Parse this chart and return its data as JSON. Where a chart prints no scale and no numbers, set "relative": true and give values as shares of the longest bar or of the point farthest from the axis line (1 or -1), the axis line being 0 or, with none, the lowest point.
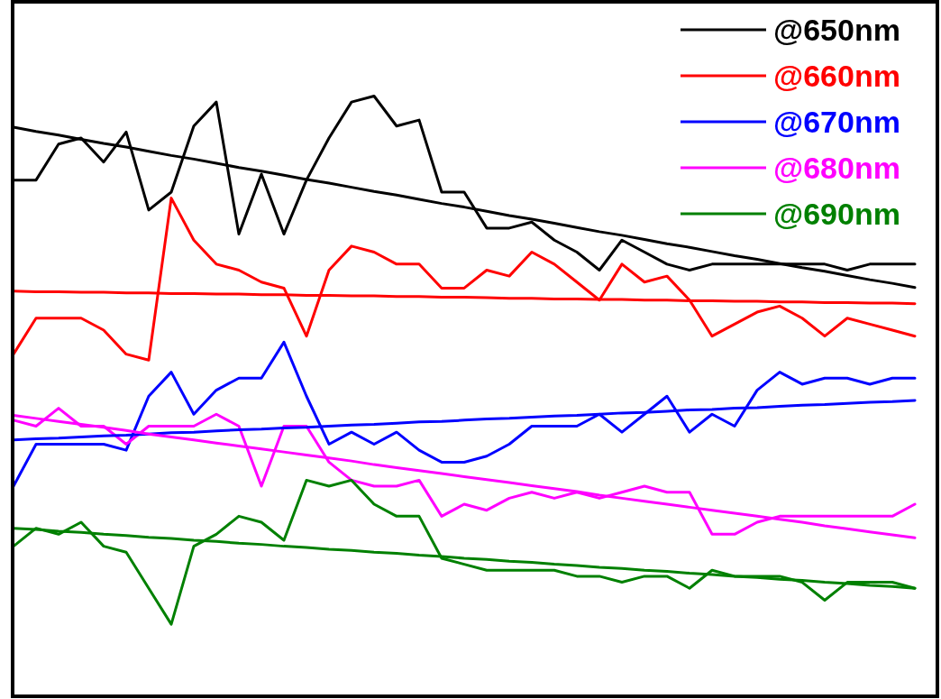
{
  "chart_data": {
    "type": "line",
    "relative": true,
    "legend": "top right",
    "categories": [
      null,
      null,
      null,
      null,
      null,
      null,
      null,
      null,
      null,
      null,
      null,
      null,
      null,
      null,
      null,
      null,
      null,
      null,
      null,
      null,
      null,
      null,
      null,
      null,
      null,
      null,
      null,
      null,
      null,
      null,
      null,
      null,
      null,
      null,
      null,
      null,
      null,
      null,
      null,
      null,
      null
    ],
    "series": [
      {
        "name": "@650nm",
        "color": "#000000",
        "values": [
          0.86,
          0.86,
          0.92,
          0.93,
          0.89,
          0.94,
          0.81,
          0.84,
          0.95,
          0.99,
          0.77,
          0.87,
          0.77,
          0.86,
          0.93,
          0.99,
          1.0,
          0.95,
          0.96,
          0.84,
          0.84,
          0.78,
          0.78,
          0.79,
          0.76,
          0.74,
          0.71,
          0.76,
          0.74,
          0.72,
          0.71,
          0.72,
          0.72,
          0.72,
          0.72,
          0.72,
          0.72,
          0.71,
          0.72,
          0.72,
          0.72
        ]
      },
      {
        "name": "@660nm",
        "color": "#ff0000",
        "values": [
          0.57,
          0.63,
          0.63,
          0.63,
          0.61,
          0.57,
          0.56,
          0.83,
          0.76,
          0.72,
          0.71,
          0.69,
          0.68,
          0.6,
          0.71,
          0.75,
          0.74,
          0.72,
          0.72,
          0.68,
          0.68,
          0.71,
          0.7,
          0.74,
          0.72,
          0.69,
          0.66,
          0.72,
          0.69,
          0.7,
          0.66,
          0.6,
          0.62,
          0.64,
          0.65,
          0.63,
          0.6,
          0.63,
          0.62,
          0.61,
          0.6
        ]
      },
      {
        "name": "@670nm",
        "color": "#0000ff",
        "values": [
          0.35,
          0.42,
          0.42,
          0.42,
          0.42,
          0.41,
          0.5,
          0.54,
          0.47,
          0.51,
          0.53,
          0.53,
          0.59,
          0.5,
          0.42,
          0.44,
          0.42,
          0.44,
          0.41,
          0.39,
          0.39,
          0.4,
          0.42,
          0.45,
          0.45,
          0.45,
          0.47,
          0.44,
          0.47,
          0.5,
          0.44,
          0.47,
          0.45,
          0.51,
          0.54,
          0.52,
          0.53,
          0.53,
          0.52,
          0.53,
          0.53
        ]
      },
      {
        "name": "@680nm",
        "color": "#ff00ff",
        "values": [
          0.46,
          0.45,
          0.48,
          0.45,
          0.45,
          0.42,
          0.45,
          0.45,
          0.45,
          0.47,
          0.45,
          0.35,
          0.45,
          0.45,
          0.39,
          0.36,
          0.35,
          0.35,
          0.36,
          0.3,
          0.32,
          0.31,
          0.33,
          0.34,
          0.33,
          0.34,
          0.33,
          0.34,
          0.35,
          0.34,
          0.34,
          0.27,
          0.27,
          0.29,
          0.3,
          0.3,
          0.3,
          0.3,
          0.3,
          0.3,
          0.32
        ]
      },
      {
        "name": "@690nm",
        "color": "#008000",
        "values": [
          0.25,
          0.28,
          0.27,
          0.29,
          0.25,
          0.24,
          0.18,
          0.12,
          0.25,
          0.27,
          0.3,
          0.29,
          0.26,
          0.36,
          0.35,
          0.36,
          0.32,
          0.3,
          0.3,
          0.23,
          0.22,
          0.21,
          0.21,
          0.21,
          0.21,
          0.2,
          0.2,
          0.19,
          0.2,
          0.2,
          0.18,
          0.21,
          0.2,
          0.2,
          0.2,
          0.19,
          0.16,
          0.19,
          0.19,
          0.19,
          0.18
        ]
      },
      {
        "color": "#000000",
        "values": [
          0.948,
          0.941,
          0.935,
          0.928,
          0.921,
          0.915,
          0.908,
          0.901,
          0.895,
          0.888,
          0.881,
          0.875,
          0.868,
          0.861,
          0.855,
          0.848,
          0.841,
          0.835,
          0.828,
          0.821,
          0.815,
          0.808,
          0.801,
          0.795,
          0.788,
          0.781,
          0.774,
          0.768,
          0.761,
          0.754,
          0.748,
          0.741,
          0.734,
          0.728,
          0.721,
          0.714,
          0.708,
          0.701,
          0.694,
          0.688,
          0.681
        ]
      },
      {
        "color": "#ff0000",
        "values": [
          0.675,
          0.674,
          0.674,
          0.673,
          0.673,
          0.672,
          0.672,
          0.671,
          0.671,
          0.67,
          0.67,
          0.669,
          0.669,
          0.668,
          0.668,
          0.667,
          0.667,
          0.666,
          0.666,
          0.665,
          0.665,
          0.664,
          0.663,
          0.663,
          0.662,
          0.662,
          0.661,
          0.661,
          0.66,
          0.66,
          0.659,
          0.659,
          0.658,
          0.658,
          0.657,
          0.657,
          0.656,
          0.656,
          0.655,
          0.655,
          0.654
        ]
      },
      {
        "color": "#0000ff",
        "values": [
          0.427,
          0.429,
          0.43,
          0.432,
          0.434,
          0.435,
          0.437,
          0.439,
          0.44,
          0.442,
          0.444,
          0.445,
          0.447,
          0.448,
          0.45,
          0.452,
          0.453,
          0.455,
          0.457,
          0.458,
          0.46,
          0.462,
          0.463,
          0.465,
          0.467,
          0.468,
          0.47,
          0.472,
          0.473,
          0.475,
          0.477,
          0.478,
          0.48,
          0.481,
          0.483,
          0.485,
          0.486,
          0.488,
          0.49,
          0.491,
          0.493
        ]
      },
      {
        "color": "#ff00ff",
        "values": [
          0.468,
          0.463,
          0.458,
          0.453,
          0.448,
          0.443,
          0.437,
          0.432,
          0.427,
          0.422,
          0.417,
          0.412,
          0.407,
          0.402,
          0.397,
          0.392,
          0.386,
          0.381,
          0.376,
          0.371,
          0.366,
          0.361,
          0.356,
          0.351,
          0.346,
          0.341,
          0.335,
          0.33,
          0.325,
          0.32,
          0.315,
          0.31,
          0.305,
          0.3,
          0.295,
          0.29,
          0.284,
          0.279,
          0.274,
          0.269,
          0.264
        ]
      },
      {
        "color": "#008000",
        "values": [
          0.28,
          0.278,
          0.275,
          0.273,
          0.27,
          0.268,
          0.265,
          0.263,
          0.26,
          0.258,
          0.255,
          0.253,
          0.25,
          0.248,
          0.245,
          0.243,
          0.24,
          0.238,
          0.235,
          0.233,
          0.23,
          0.228,
          0.225,
          0.223,
          0.22,
          0.218,
          0.215,
          0.213,
          0.21,
          0.208,
          0.205,
          0.203,
          0.2,
          0.198,
          0.195,
          0.193,
          0.19,
          0.188,
          0.185,
          0.183,
          0.18
        ]
      }
    ]
  }
}
